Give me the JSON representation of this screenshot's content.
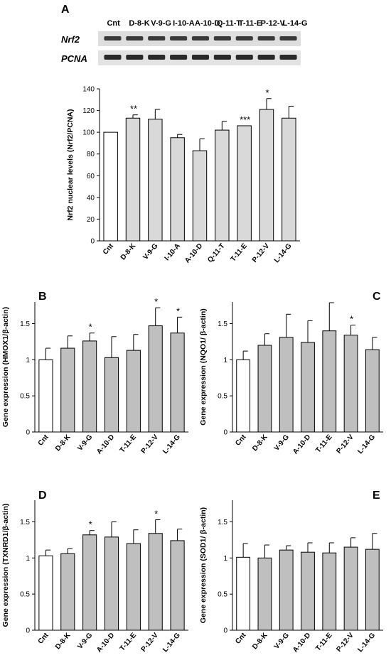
{
  "figure": {
    "panels": [
      {
        "letter": "A",
        "blot": {
          "lane_labels": [
            "Cnt",
            "D-8-K",
            "V-9-G",
            "I-10-A",
            "A-10-D",
            "Q-11-T",
            "T-11-E",
            "P-12-V",
            "L-14-G"
          ],
          "rows": [
            {
              "label": "Nrf2"
            },
            {
              "label": "PCNA"
            }
          ]
        }
      }
    ]
  },
  "chart_data": [
    {
      "panel": "A",
      "type": "bar",
      "categories": [
        "Cnt",
        "D-8-K",
        "V-9-G",
        "I-10-A",
        "A-10-D",
        "Q-11-T",
        "T-11-E",
        "P-12-V",
        "L-14-G"
      ],
      "values": [
        100,
        113,
        112,
        95,
        83,
        102,
        106,
        121,
        113
      ],
      "errors": [
        0,
        3,
        9,
        3,
        11,
        8,
        0,
        10,
        11
      ],
      "significance": [
        "",
        "**",
        "",
        "",
        "",
        "",
        "***",
        "*",
        ""
      ],
      "ylabel": "Nrf2 nuclear levels (Nrf2/PCNA)",
      "ylim": [
        0,
        140
      ],
      "yticks": [
        0,
        20,
        40,
        60,
        80,
        100,
        120,
        140
      ],
      "colors": {
        "control": "#ffffff",
        "treated": "#d9d9d9",
        "edge": "#000000"
      }
    },
    {
      "panel": "B",
      "type": "bar",
      "categories": [
        "Cnt",
        "D-8-K",
        "V-9-G",
        "A-10-D",
        "T-11-E",
        "P-12-V",
        "L-14-G"
      ],
      "values": [
        1.0,
        1.16,
        1.26,
        1.03,
        1.13,
        1.47,
        1.37
      ],
      "errors": [
        0.16,
        0.17,
        0.11,
        0.29,
        0.22,
        0.25,
        0.22
      ],
      "significance": [
        "",
        "",
        "*",
        "",
        "",
        "*",
        "*"
      ],
      "ylabel": "Gene expression (HMOX1/β-actin)",
      "ylim": [
        0,
        1.8
      ],
      "yticks": [
        0,
        0.5,
        1,
        1.5
      ],
      "colors": {
        "control": "#ffffff",
        "treated": "#bfbfbf",
        "edge": "#000000"
      }
    },
    {
      "panel": "C",
      "type": "bar",
      "categories": [
        "Cnt",
        "D-8-K",
        "V-9-G",
        "A-10-D",
        "T-11-E",
        "P-12-V",
        "L-14-G"
      ],
      "values": [
        1.0,
        1.2,
        1.31,
        1.24,
        1.4,
        1.34,
        1.14
      ],
      "errors": [
        0.12,
        0.16,
        0.32,
        0.3,
        0.39,
        0.14,
        0.17
      ],
      "significance": [
        "",
        "",
        "",
        "",
        "",
        "*",
        ""
      ],
      "ylabel": "Gene expression (NQO1/ β-actin)",
      "ylim": [
        0,
        1.8
      ],
      "yticks": [
        0,
        0.5,
        1,
        1.5
      ],
      "colors": {
        "control": "#ffffff",
        "treated": "#bfbfbf",
        "edge": "#000000"
      }
    },
    {
      "panel": "D",
      "type": "bar",
      "categories": [
        "Cnt",
        "D-8-K",
        "V-9-G",
        "A-10-D",
        "T-11-E",
        "P-12-V",
        "L-14-G"
      ],
      "values": [
        1.03,
        1.06,
        1.32,
        1.29,
        1.2,
        1.34,
        1.24
      ],
      "errors": [
        0.08,
        0.07,
        0.06,
        0.21,
        0.19,
        0.19,
        0.16
      ],
      "significance": [
        "",
        "",
        "*",
        "",
        "",
        "*",
        ""
      ],
      "ylabel": "Gene expression (TXNRD1/β-actin)",
      "ylim": [
        0,
        1.8
      ],
      "yticks": [
        0,
        0.5,
        1,
        1.5
      ],
      "colors": {
        "control": "#ffffff",
        "treated": "#bfbfbf",
        "edge": "#000000"
      }
    },
    {
      "panel": "E",
      "type": "bar",
      "categories": [
        "Cnt",
        "D-8-K",
        "V-9-G",
        "A-10-D",
        "T-11-E",
        "P-12-V",
        "L-14-G"
      ],
      "values": [
        1.01,
        1.0,
        1.11,
        1.08,
        1.07,
        1.15,
        1.12
      ],
      "errors": [
        0.19,
        0.18,
        0.06,
        0.13,
        0.14,
        0.13,
        0.22
      ],
      "significance": [
        "",
        "",
        "",
        "",
        "",
        "",
        ""
      ],
      "ylabel": "Gene expression (SOD1/ β-actin)",
      "ylim": [
        0,
        1.8
      ],
      "yticks": [
        0,
        0.5,
        1,
        1.5
      ],
      "colors": {
        "control": "#ffffff",
        "treated": "#bfbfbf",
        "edge": "#000000"
      }
    }
  ]
}
